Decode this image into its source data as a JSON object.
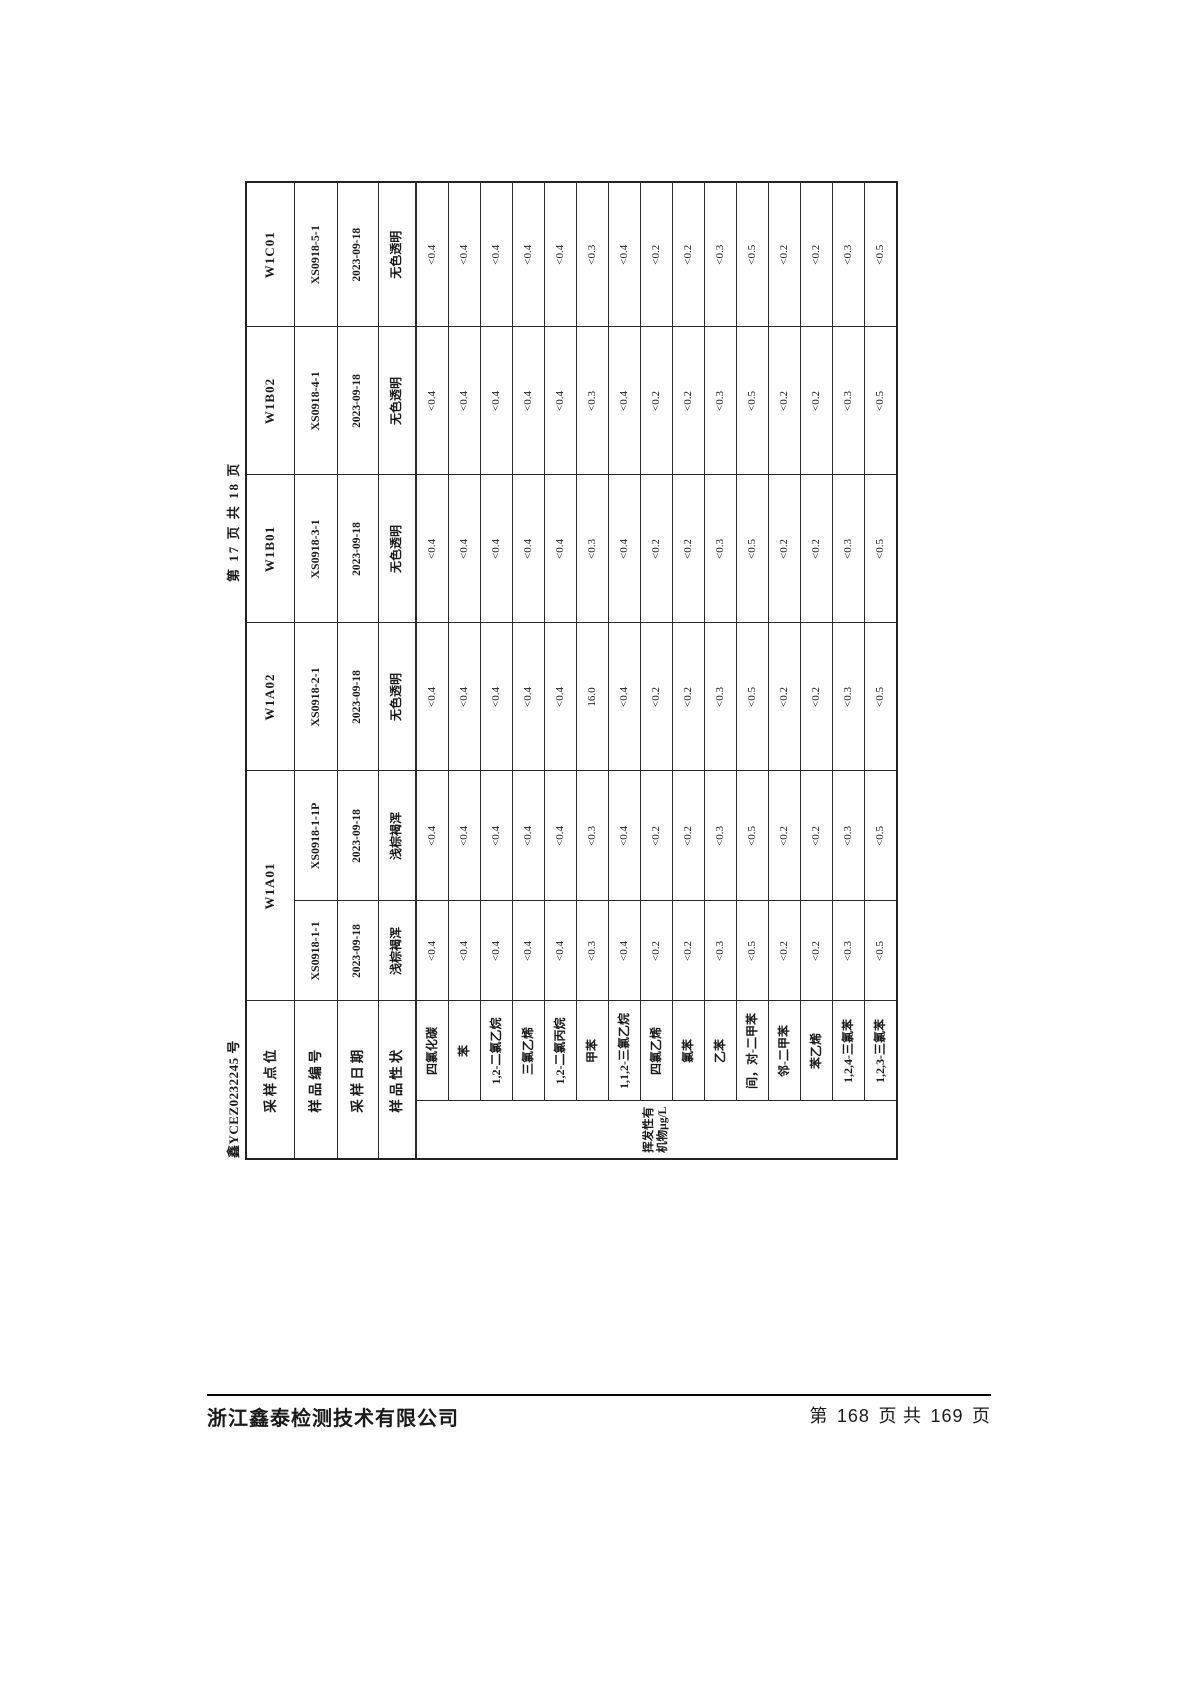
{
  "report": {
    "doc_no": "鑫YCEZ0232245 号",
    "sheet_page_note": "第 17 页 共 18 页"
  },
  "table": {
    "site": {
      "label": "采样点位",
      "values": [
        "W1A01",
        "W1A02",
        "W1B01",
        "W1B02",
        "W1C01"
      ]
    },
    "sample_no": {
      "label": "样品编号",
      "values": [
        "XS0918-1-1",
        "XS0918-1-1P",
        "XS0918-2-1",
        "XS0918-3-1",
        "XS0918-4-1",
        "XS0918-5-1"
      ]
    },
    "date": {
      "label": "采样日期",
      "values": [
        "2023-09-18",
        "2023-09-18",
        "2023-09-18",
        "2023-09-18",
        "2023-09-18",
        "2023-09-18"
      ]
    },
    "character": {
      "label": "样品性状",
      "values": [
        "浅棕褐浑",
        "浅棕褐浑",
        "无色透明",
        "无色透明",
        "无色透明",
        "无色透明"
      ]
    },
    "group_label": "挥发性有机物μg/L",
    "analytes": [
      {
        "name": "四氯化碳",
        "values": [
          "<0.4",
          "<0.4",
          "<0.4",
          "<0.4",
          "<0.4",
          "<0.4"
        ]
      },
      {
        "name": "苯",
        "values": [
          "<0.4",
          "<0.4",
          "<0.4",
          "<0.4",
          "<0.4",
          "<0.4"
        ]
      },
      {
        "name": "1,2-二氯乙烷",
        "values": [
          "<0.4",
          "<0.4",
          "<0.4",
          "<0.4",
          "<0.4",
          "<0.4"
        ]
      },
      {
        "name": "三氯乙烯",
        "values": [
          "<0.4",
          "<0.4",
          "<0.4",
          "<0.4",
          "<0.4",
          "<0.4"
        ]
      },
      {
        "name": "1,2-二氯丙烷",
        "values": [
          "<0.4",
          "<0.4",
          "<0.4",
          "<0.4",
          "<0.4",
          "<0.4"
        ]
      },
      {
        "name": "甲苯",
        "values": [
          "<0.3",
          "<0.3",
          "16.0",
          "<0.3",
          "<0.3",
          "<0.3"
        ]
      },
      {
        "name": "1,1,2-三氯乙烷",
        "values": [
          "<0.4",
          "<0.4",
          "<0.4",
          "<0.4",
          "<0.4",
          "<0.4"
        ]
      },
      {
        "name": "四氯乙烯",
        "values": [
          "<0.2",
          "<0.2",
          "<0.2",
          "<0.2",
          "<0.2",
          "<0.2"
        ]
      },
      {
        "name": "氯苯",
        "values": [
          "<0.2",
          "<0.2",
          "<0.2",
          "<0.2",
          "<0.2",
          "<0.2"
        ]
      },
      {
        "name": "乙苯",
        "values": [
          "<0.3",
          "<0.3",
          "<0.3",
          "<0.3",
          "<0.3",
          "<0.3"
        ]
      },
      {
        "name": "间，对-二甲苯",
        "values": [
          "<0.5",
          "<0.5",
          "<0.5",
          "<0.5",
          "<0.5",
          "<0.5"
        ]
      },
      {
        "name": "邻-二甲苯",
        "values": [
          "<0.2",
          "<0.2",
          "<0.2",
          "<0.2",
          "<0.2",
          "<0.2"
        ]
      },
      {
        "name": "苯乙烯",
        "values": [
          "<0.2",
          "<0.2",
          "<0.2",
          "<0.2",
          "<0.2",
          "<0.2"
        ]
      },
      {
        "name": "1,2,4-三氯苯",
        "values": [
          "<0.3",
          "<0.3",
          "<0.3",
          "<0.3",
          "<0.3",
          "<0.3"
        ]
      },
      {
        "name": "1,2,3-三氯苯",
        "values": [
          "<0.5",
          "<0.5",
          "<0.5",
          "<0.5",
          "<0.5",
          "<0.5"
        ]
      }
    ]
  },
  "footer": {
    "company": "浙江鑫泰检测技术有限公司",
    "page": {
      "prefix": "第",
      "current": "168",
      "mid": "页 共",
      "total": "169",
      "suffix": "页"
    }
  }
}
